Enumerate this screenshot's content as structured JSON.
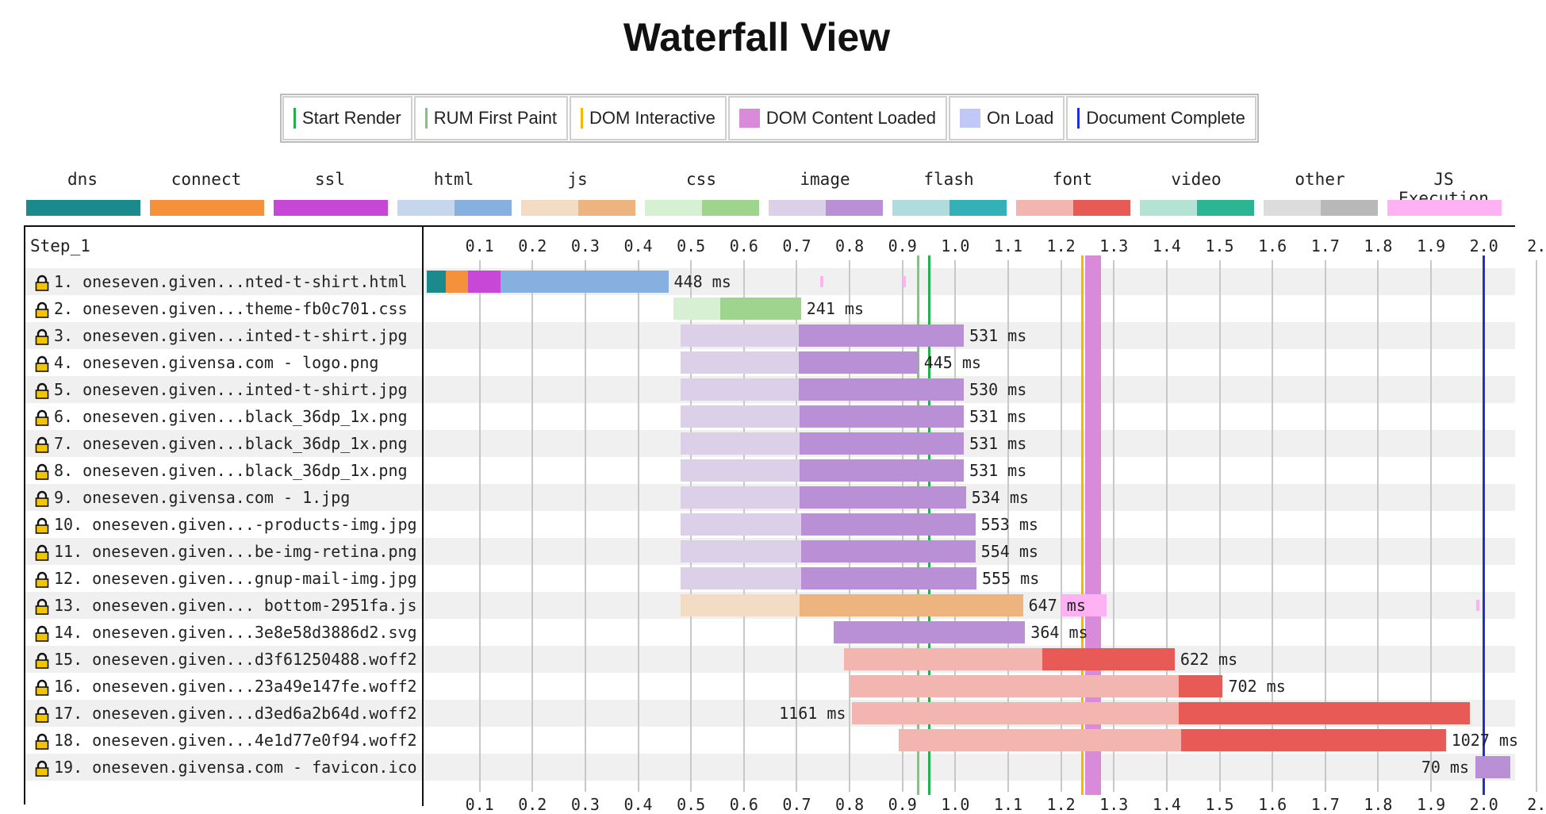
{
  "title": "Waterfall View",
  "milestones": [
    {
      "label": "Start Render",
      "color": "#22b14c",
      "style": "line"
    },
    {
      "label": "RUM First Paint",
      "color": "#8fbc8f",
      "style": "line"
    },
    {
      "label": "DOM Interactive",
      "color": "#f5b700",
      "style": "line"
    },
    {
      "label": "DOM Content Loaded",
      "color": "#d98ad9",
      "style": "box"
    },
    {
      "label": "On Load",
      "color": "#c0c8f8",
      "style": "box"
    },
    {
      "label": "Document Complete",
      "color": "#1f2fd6",
      "style": "line"
    }
  ],
  "request_types": [
    {
      "label": "dns",
      "colors": [
        "#1b8a8c",
        "#1b8a8c"
      ]
    },
    {
      "label": "connect",
      "colors": [
        "#f4913a",
        "#f4913a"
      ]
    },
    {
      "label": "ssl",
      "colors": [
        "#c748d6",
        "#c748d6"
      ]
    },
    {
      "label": "html",
      "colors": [
        "#c6d6ec",
        "#86b0e0"
      ]
    },
    {
      "label": "js",
      "colors": [
        "#f3dcc4",
        "#eeb47f"
      ]
    },
    {
      "label": "css",
      "colors": [
        "#d7efd2",
        "#9fd48f"
      ]
    },
    {
      "label": "image",
      "colors": [
        "#dccfe8",
        "#b98fd6"
      ]
    },
    {
      "label": "flash",
      "colors": [
        "#b1dcde",
        "#34b1b8"
      ]
    },
    {
      "label": "font",
      "colors": [
        "#f2b5b0",
        "#e85a55"
      ]
    },
    {
      "label": "video",
      "colors": [
        "#b4e3d5",
        "#2bb592"
      ]
    },
    {
      "label": "other",
      "colors": [
        "#dcdcdc",
        "#b8b8b8"
      ]
    },
    {
      "label": "JS Execution",
      "colors": [
        "#ffb2f3",
        "#ffb2f3"
      ]
    }
  ],
  "step_label": "Step_1",
  "axis": {
    "min": 0.0,
    "max": 2.05,
    "ticks": [
      "0.1",
      "0.2",
      "0.3",
      "0.4",
      "0.5",
      "0.6",
      "0.7",
      "0.8",
      "0.9",
      "1.0",
      "1.1",
      "1.2",
      "1.3",
      "1.4",
      "1.5",
      "1.6",
      "1.7",
      "1.8",
      "1.9",
      "2.0",
      "2."
    ]
  },
  "markers": {
    "start_render": 0.95,
    "rum_first_paint": 0.93,
    "dom_interactive": 1.24,
    "dom_content_loaded": [
      1.245,
      1.276
    ],
    "document_complete": 2.0,
    "on_load_end": 2.05
  },
  "requests": [
    {
      "num": "1.",
      "url": "oneseven.given...nted-t-shirt.html",
      "type": "html",
      "start": 0.0,
      "split": 0.14,
      "end": 0.457,
      "duration": "448 ms",
      "pre": [
        {
          "c": "#1b8a8c",
          "s": 0.0,
          "e": 0.036
        },
        {
          "c": "#f4913a",
          "s": 0.036,
          "e": 0.078
        },
        {
          "c": "#c748d6",
          "s": 0.078,
          "e": 0.14
        }
      ],
      "js": [
        0.745,
        0.9
      ]
    },
    {
      "num": "2.",
      "url": "oneseven.given...theme-fb0c701.css",
      "type": "css",
      "start": 0.467,
      "split": 0.555,
      "end": 0.708,
      "duration": "241 ms"
    },
    {
      "num": "3.",
      "url": "oneseven.given...inted-t-shirt.jpg",
      "type": "image",
      "start": 0.48,
      "split": 0.704,
      "end": 1.016,
      "duration": "531 ms"
    },
    {
      "num": "4.",
      "url": "oneseven.givensa.com - logo.png",
      "type": "image",
      "start": 0.48,
      "split": 0.704,
      "end": 0.93,
      "duration": "445 ms"
    },
    {
      "num": "5.",
      "url": "oneseven.given...inted-t-shirt.jpg",
      "type": "image",
      "start": 0.48,
      "split": 0.704,
      "end": 1.016,
      "duration": "530 ms"
    },
    {
      "num": "6.",
      "url": "oneseven.given...black_36dp_1x.png",
      "type": "image",
      "start": 0.48,
      "split": 0.706,
      "end": 1.016,
      "duration": "531 ms"
    },
    {
      "num": "7.",
      "url": "oneseven.given...black_36dp_1x.png",
      "type": "image",
      "start": 0.48,
      "split": 0.706,
      "end": 1.016,
      "duration": "531 ms"
    },
    {
      "num": "8.",
      "url": "oneseven.given...black_36dp_1x.png",
      "type": "image",
      "start": 0.48,
      "split": 0.706,
      "end": 1.016,
      "duration": "531 ms"
    },
    {
      "num": "9.",
      "url": "oneseven.givensa.com - 1.jpg",
      "type": "image",
      "start": 0.48,
      "split": 0.706,
      "end": 1.02,
      "duration": "534 ms"
    },
    {
      "num": "10.",
      "url": "oneseven.given...-products-img.jpg",
      "type": "image",
      "start": 0.48,
      "split": 0.708,
      "end": 1.038,
      "duration": "553 ms"
    },
    {
      "num": "11.",
      "url": "oneseven.given...be-img-retina.png",
      "type": "image",
      "start": 0.48,
      "split": 0.708,
      "end": 1.038,
      "duration": "554 ms"
    },
    {
      "num": "12.",
      "url": "oneseven.given...gnup-mail-img.jpg",
      "type": "image",
      "start": 0.48,
      "split": 0.708,
      "end": 1.04,
      "duration": "555 ms"
    },
    {
      "num": "13.",
      "url": "oneseven.given... bottom-2951fa.js",
      "type": "js",
      "start": 0.48,
      "split": 0.706,
      "end": 1.128,
      "duration": "647 ms",
      "jsblock": [
        1.2,
        1.286
      ],
      "js": [
        1.986
      ]
    },
    {
      "num": "14.",
      "url": "oneseven.given...3e8e58d3886d2.svg",
      "type": "image",
      "start": 0.77,
      "split": 0.77,
      "end": 1.132,
      "duration": "364 ms"
    },
    {
      "num": "15.",
      "url": "oneseven.given...d3f61250488.woff2",
      "type": "font",
      "start": 0.79,
      "split": 1.165,
      "end": 1.415,
      "duration": "622 ms"
    },
    {
      "num": "16.",
      "url": "oneseven.given...23a49e147fe.woff2",
      "type": "font",
      "start": 0.8,
      "split": 1.423,
      "end": 1.506,
      "duration": "702 ms"
    },
    {
      "num": "17.",
      "url": "oneseven.given...d3ed6a2b64d.woff2",
      "type": "font",
      "start": 0.805,
      "split": 1.423,
      "end": 1.974,
      "duration": "1161 ms",
      "label_left": true
    },
    {
      "num": "18.",
      "url": "oneseven.given...4e1d77e0f94.woff2",
      "type": "font",
      "start": 0.893,
      "split": 1.427,
      "end": 1.928,
      "duration": "1027 ms"
    },
    {
      "num": "19.",
      "url": "oneseven.givensa.com - favicon.ico",
      "type": "image",
      "start": 1.984,
      "split": 1.984,
      "end": 2.05,
      "duration": "70 ms",
      "label_left": true
    }
  ]
}
